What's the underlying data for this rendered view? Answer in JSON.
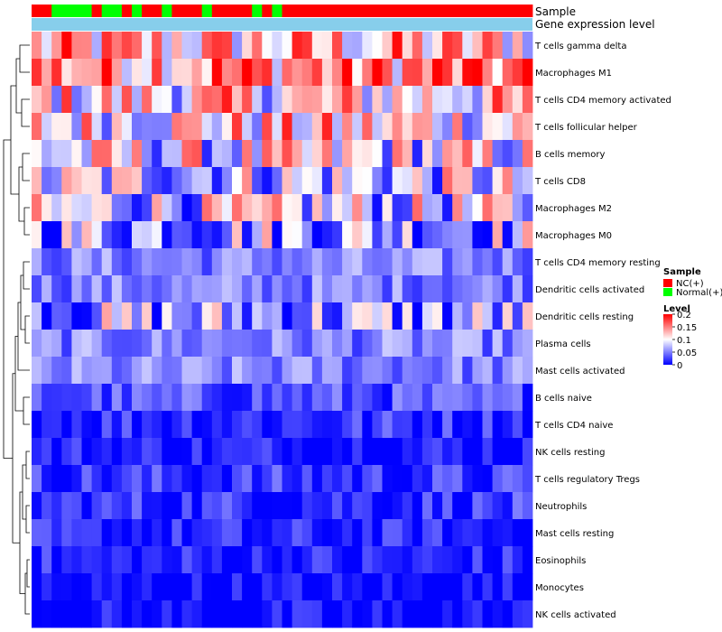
{
  "chart_data": {
    "type": "heatmap",
    "annotation_tracks": [
      {
        "label": "Sample"
      },
      {
        "label": "Gene expression level"
      }
    ],
    "sample_group_order": [
      "NC",
      "NC",
      "Normal",
      "Normal",
      "Normal",
      "Normal",
      "NC",
      "Normal",
      "Normal",
      "NC",
      "Normal",
      "NC",
      "NC",
      "Normal",
      "NC",
      "NC",
      "NC",
      "Normal",
      "NC",
      "NC",
      "NC",
      "NC",
      "Normal",
      "NC",
      "Normal",
      "NC",
      "NC",
      "NC",
      "NC",
      "NC",
      "NC",
      "NC",
      "NC",
      "NC",
      "NC",
      "NC",
      "NC",
      "NC",
      "NC",
      "NC",
      "NC",
      "NC",
      "NC",
      "NC",
      "NC",
      "NC",
      "NC",
      "NC",
      "NC",
      "NC"
    ],
    "rows": [
      "T cells gamma delta",
      "Macrophages M1",
      "T cells CD4 memory activated",
      "T cells follicular helper",
      "B cells memory",
      "T cells CD8",
      "Macrophages M2",
      "Macrophages M0",
      "T cells CD4 memory resting",
      "Dendritic cells activated",
      "Dendritic cells resting",
      "Plasma cells",
      "Mast cells activated",
      "B cells naive",
      "T cells CD4 naive",
      "NK cells resting",
      "T cells regulatory  Tregs",
      "Neutrophils",
      "Mast cells resting",
      "Eosinophils",
      "Monocytes",
      "NK cells activated"
    ],
    "row_mean_level": [
      0.12,
      0.15,
      0.11,
      0.11,
      0.09,
      0.08,
      0.08,
      0.07,
      0.05,
      0.05,
      0.06,
      0.05,
      0.05,
      0.03,
      0.02,
      0.01,
      0.02,
      0.02,
      0.01,
      0.01,
      0.0,
      0.0
    ],
    "legend": {
      "sample_title": "Sample",
      "sample_entries": [
        {
          "label": "NC(+)",
          "color": "#ff0000"
        },
        {
          "label": "Normal(+)",
          "color": "#00ff00"
        }
      ],
      "level_title": "Level",
      "level_ticks": [
        "0.2",
        "0.15",
        "0.1",
        "0.05",
        "0"
      ],
      "level_range": [
        0,
        0.2
      ]
    },
    "colors": {
      "low": "#0000ff",
      "mid": "#ffffff",
      "high": "#ff0000",
      "nc": "#ff0000",
      "normal": "#00ff00",
      "expression_bar": "#87ceeb"
    }
  }
}
